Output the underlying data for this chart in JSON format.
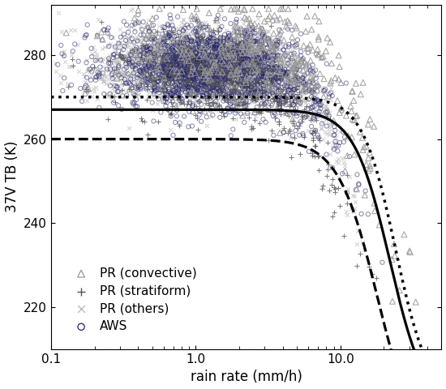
{
  "title": "",
  "xlabel": "rain rate (mm/h)",
  "ylabel": "37V TB (K)",
  "xlim": [
    0.1,
    50
  ],
  "ylim": [
    210,
    292
  ],
  "yticks": [
    220,
    240,
    260,
    280
  ],
  "xlog": true,
  "legend_labels": [
    "PR (convective)",
    "PR (stratiform)",
    "PR (others)",
    "AWS"
  ],
  "pr_convective_color": "#999999",
  "pr_stratiform_color": "#555555",
  "pr_others_color": "#bbbbbb",
  "aws_edge_color": "#222266",
  "curve_color": "#000000",
  "seed": 42,
  "figsize": [
    5.5,
    4.8
  ]
}
